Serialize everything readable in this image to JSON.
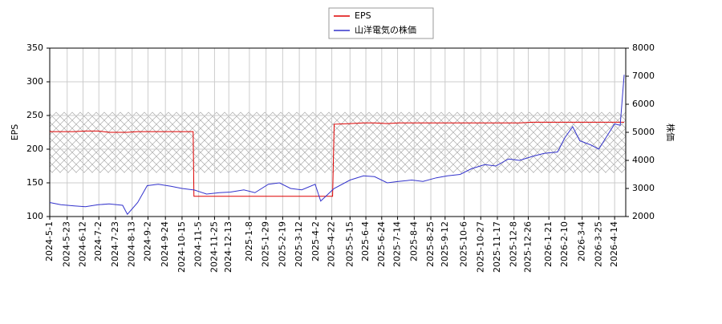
{
  "chart_data": {
    "type": "line",
    "x": [
      "2024-5-1",
      "2024-5-15",
      "2024-6-1",
      "2024-6-15",
      "2024-7-1",
      "2024-7-15",
      "2024-8-1",
      "2024-8-7",
      "2024-8-20",
      "2024-9-1",
      "2024-9-15",
      "2024-10-1",
      "2024-10-15",
      "2024-10-29",
      "2024-10-30",
      "2024-11-15",
      "2024-12-1",
      "2024-12-15",
      "2025-1-1",
      "2025-1-15",
      "2025-2-1",
      "2025-2-15",
      "2025-3-1",
      "2025-3-15",
      "2025-4-1",
      "2025-4-8",
      "2025-4-23",
      "2025-4-25",
      "2025-5-15",
      "2025-6-1",
      "2025-6-15",
      "2025-7-1",
      "2025-7-15",
      "2025-8-1",
      "2025-8-15",
      "2025-9-1",
      "2025-9-15",
      "2025-10-1",
      "2025-10-15",
      "2025-11-1",
      "2025-11-15",
      "2025-12-1",
      "2025-12-15",
      "2026-1-1",
      "2026-1-15",
      "2026-2-1",
      "2026-2-10",
      "2026-2-20",
      "2026-3-1",
      "2026-3-15",
      "2026-3-25",
      "2026-4-5",
      "2026-4-14",
      "2026-4-21",
      "2026-4-26"
    ],
    "series": [
      {
        "name": "EPS",
        "color": "#dd0000",
        "values": [
          226,
          226,
          226,
          227,
          227,
          225,
          225,
          225,
          226,
          226,
          226,
          226,
          226,
          226,
          130,
          130,
          130,
          130,
          130,
          130,
          130,
          130,
          130,
          130,
          130,
          130,
          130,
          237,
          238,
          239,
          239,
          238,
          239,
          239,
          239,
          239,
          239,
          239,
          239,
          239,
          239,
          239,
          239,
          240,
          240,
          240,
          240,
          240,
          240,
          240,
          240,
          240,
          240,
          240,
          240
        ]
      },
      {
        "name": "山洋電気の株価",
        "color": "#3333cc",
        "axis": "y2",
        "values": [
          2500,
          2420,
          2380,
          2350,
          2420,
          2450,
          2400,
          2080,
          2500,
          3100,
          3150,
          3080,
          3000,
          2950,
          2950,
          2800,
          2850,
          2870,
          2950,
          2850,
          3150,
          3200,
          3000,
          2950,
          3150,
          2550,
          2950,
          3000,
          3300,
          3450,
          3420,
          3200,
          3250,
          3300,
          3250,
          3380,
          3450,
          3500,
          3700,
          3850,
          3800,
          4050,
          4000,
          4150,
          4250,
          4300,
          4800,
          5200,
          4700,
          4550,
          4400,
          4900,
          5300,
          5250,
          7050
        ]
      }
    ],
    "xlim": [
      "2024-5-1",
      "2026-4-28"
    ],
    "xticks": [
      "2024-5-1",
      "2024-5-23",
      "2024-6-12",
      "2024-7-2",
      "2024-7-23",
      "2024-8-13",
      "2024-9-2",
      "2024-9-24",
      "2024-10-15",
      "2024-11-5",
      "2024-11-25",
      "2024-12-13",
      "2025-1-8",
      "2025-1-29",
      "2025-2-19",
      "2025-3-12",
      "2025-4-2",
      "2025-4-22",
      "2025-5-15",
      "2025-6-4",
      "2025-6-24",
      "2025-7-14",
      "2025-8-4",
      "2025-8-25",
      "2025-9-12",
      "2025-10-6",
      "2025-10-27",
      "2025-11-17",
      "2025-12-8",
      "2025-12-26",
      "2026-1-21",
      "2026-2-10",
      "2026-3-4",
      "2026-3-25",
      "2026-4-14"
    ],
    "ylabel": "EPS",
    "ylim": [
      100,
      350
    ],
    "yticks": [
      100,
      150,
      200,
      250,
      300,
      350
    ],
    "y2label": "株価",
    "y2lim": [
      2000,
      8000
    ],
    "y2ticks": [
      2000,
      3000,
      4000,
      5000,
      6000,
      7000,
      8000
    ],
    "shaded_range": [
      165,
      255
    ],
    "grid": true,
    "legend": "top"
  }
}
